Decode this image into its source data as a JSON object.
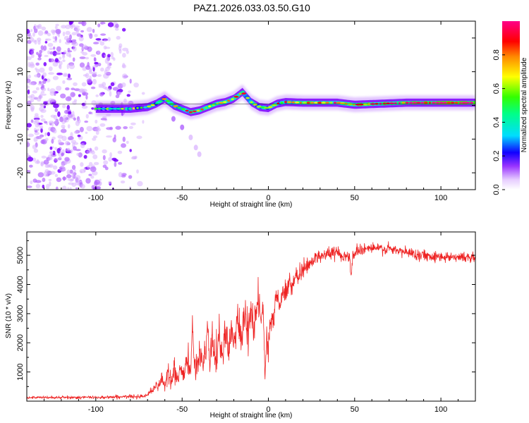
{
  "title": "PAZ1.2026.033.03.50.G10",
  "chart_data": [
    {
      "type": "heatmap",
      "name": "spectrogram",
      "xlabel": "Height of straight line (km)",
      "ylabel": "Frequency (Hz)",
      "xlim": [
        -140,
        120
      ],
      "ylim": [
        -25,
        25
      ],
      "xticks": [
        -100,
        -50,
        0,
        50,
        100
      ],
      "yticks": [
        -20,
        -10,
        0,
        10,
        20
      ],
      "colorbar": {
        "label": "Normalized spectral amplitude",
        "range": [
          0,
          1
        ],
        "ticks": [
          0.0,
          0.2,
          0.4,
          0.6,
          0.8
        ],
        "colors": [
          "#ffffff",
          "#cc99ff",
          "#8800ff",
          "#0000ff",
          "#00ffff",
          "#00ff00",
          "#ffff00",
          "#ff8800",
          "#ff0000",
          "#ff0088"
        ]
      },
      "ridge": {
        "x": [
          -100,
          -80,
          -70,
          -65,
          -60,
          -55,
          -50,
          -45,
          -40,
          -35,
          -30,
          -25,
          -20,
          -15,
          -10,
          -5,
          0,
          5,
          10,
          20,
          30,
          40,
          50,
          60,
          70,
          80,
          100,
          120
        ],
        "y": [
          -1,
          -1,
          -0.5,
          0.5,
          2,
          0,
          -1,
          -2,
          -1.5,
          -0.5,
          0.5,
          1,
          2,
          4,
          1,
          -0.5,
          -0.8,
          0.5,
          1,
          0.8,
          0.8,
          0.8,
          0.2,
          0.4,
          0.6,
          0.8,
          0.8,
          0.8
        ],
        "amplitude": [
          0.3,
          0.4,
          0.45,
          0.55,
          0.5,
          0.6,
          0.65,
          0.65,
          0.7,
          0.7,
          0.7,
          0.75,
          0.7,
          0.65,
          0.6,
          0.55,
          0.5,
          0.6,
          0.65,
          0.7,
          0.72,
          0.72,
          0.75,
          0.75,
          0.8,
          0.9,
          0.95,
          0.95
        ]
      },
      "secondary_branch": {
        "x": [
          -55,
          -50,
          -45,
          -42,
          -40
        ],
        "y": [
          -4,
          -6.5,
          -9.5,
          -12.5,
          -14.5
        ]
      },
      "noise_region": {
        "x_from": -140,
        "x_to": -70,
        "y_from": -25,
        "y_to": 25
      }
    },
    {
      "type": "line",
      "name": "snr",
      "xlabel": "Height of straight line (km)",
      "ylabel": "SNR (10 * v/v)",
      "xlim": [
        -140,
        120
      ],
      "ylim": [
        0,
        5800
      ],
      "xticks": [
        -100,
        -50,
        0,
        50,
        100
      ],
      "yticks": [
        1000,
        2000,
        3000,
        4000,
        5000
      ],
      "color": "#ee2222",
      "envelope": {
        "x": [
          -140,
          -100,
          -75,
          -70,
          -65,
          -60,
          -55,
          -50,
          -45,
          -40,
          -35,
          -30,
          -25,
          -20,
          -15,
          -10,
          -5,
          -2,
          0,
          2,
          5,
          10,
          15,
          20,
          25,
          30,
          40,
          48,
          52,
          60,
          70,
          80,
          90,
          100,
          110,
          120
        ],
        "y": [
          120,
          130,
          160,
          220,
          500,
          700,
          800,
          1000,
          1200,
          1400,
          1600,
          1800,
          2000,
          2200,
          2500,
          2800,
          3000,
          2600,
          1800,
          2900,
          3300,
          3800,
          4100,
          4500,
          4800,
          5000,
          5100,
          4900,
          5200,
          5250,
          5200,
          5100,
          5000,
          4950,
          4950,
          4900
        ]
      },
      "noise_amplitude": {
        "x": [
          -140,
          -70,
          -60,
          -30,
          -10,
          10,
          30,
          60,
          120
        ],
        "y": [
          40,
          60,
          250,
          450,
          550,
          300,
          200,
          180,
          150
        ]
      },
      "features": [
        {
          "x": -44,
          "y": 2550
        },
        {
          "x": -35,
          "y": 2600
        },
        {
          "x": -5,
          "y": 3500
        },
        {
          "x": -2,
          "y": 700
        },
        {
          "x": 48,
          "y": 4300
        }
      ]
    }
  ]
}
